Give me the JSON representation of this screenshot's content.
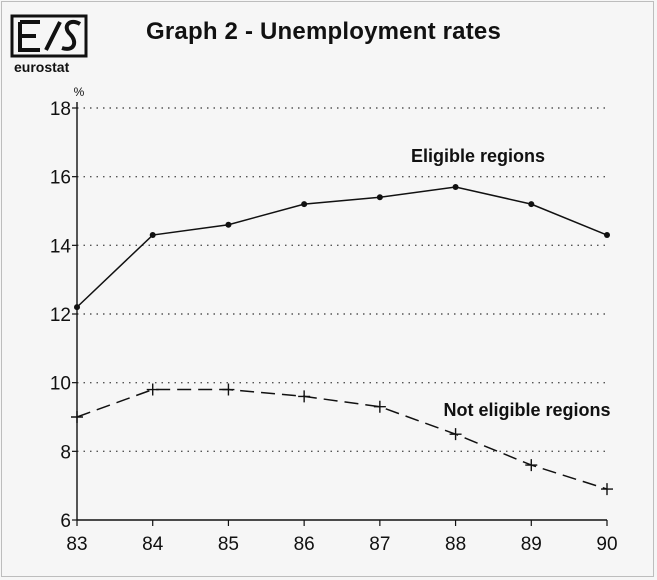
{
  "title": "Graph 2 - Unemployment rates",
  "logo_text": "eurostat",
  "chart_data": {
    "type": "line",
    "title": "Graph 2 - Unemployment rates",
    "ylabel": "%",
    "xlabel": "",
    "x": [
      "83",
      "84",
      "85",
      "86",
      "87",
      "88",
      "89",
      "90"
    ],
    "ylim": [
      6,
      18
    ],
    "yticks": [
      "6",
      "8",
      "10",
      "12",
      "14",
      "16",
      "18"
    ],
    "grid": "horizontal dotted",
    "series": [
      {
        "name": "Eligible regions",
        "style": "solid",
        "marker": "dot",
        "values": [
          12.2,
          14.3,
          14.6,
          15.2,
          15.4,
          15.7,
          15.2,
          14.3
        ]
      },
      {
        "name": "Not eligible regions",
        "style": "dashed",
        "marker": "plus",
        "values": [
          9.0,
          9.8,
          9.8,
          9.6,
          9.3,
          8.5,
          7.6,
          6.9
        ]
      }
    ]
  }
}
